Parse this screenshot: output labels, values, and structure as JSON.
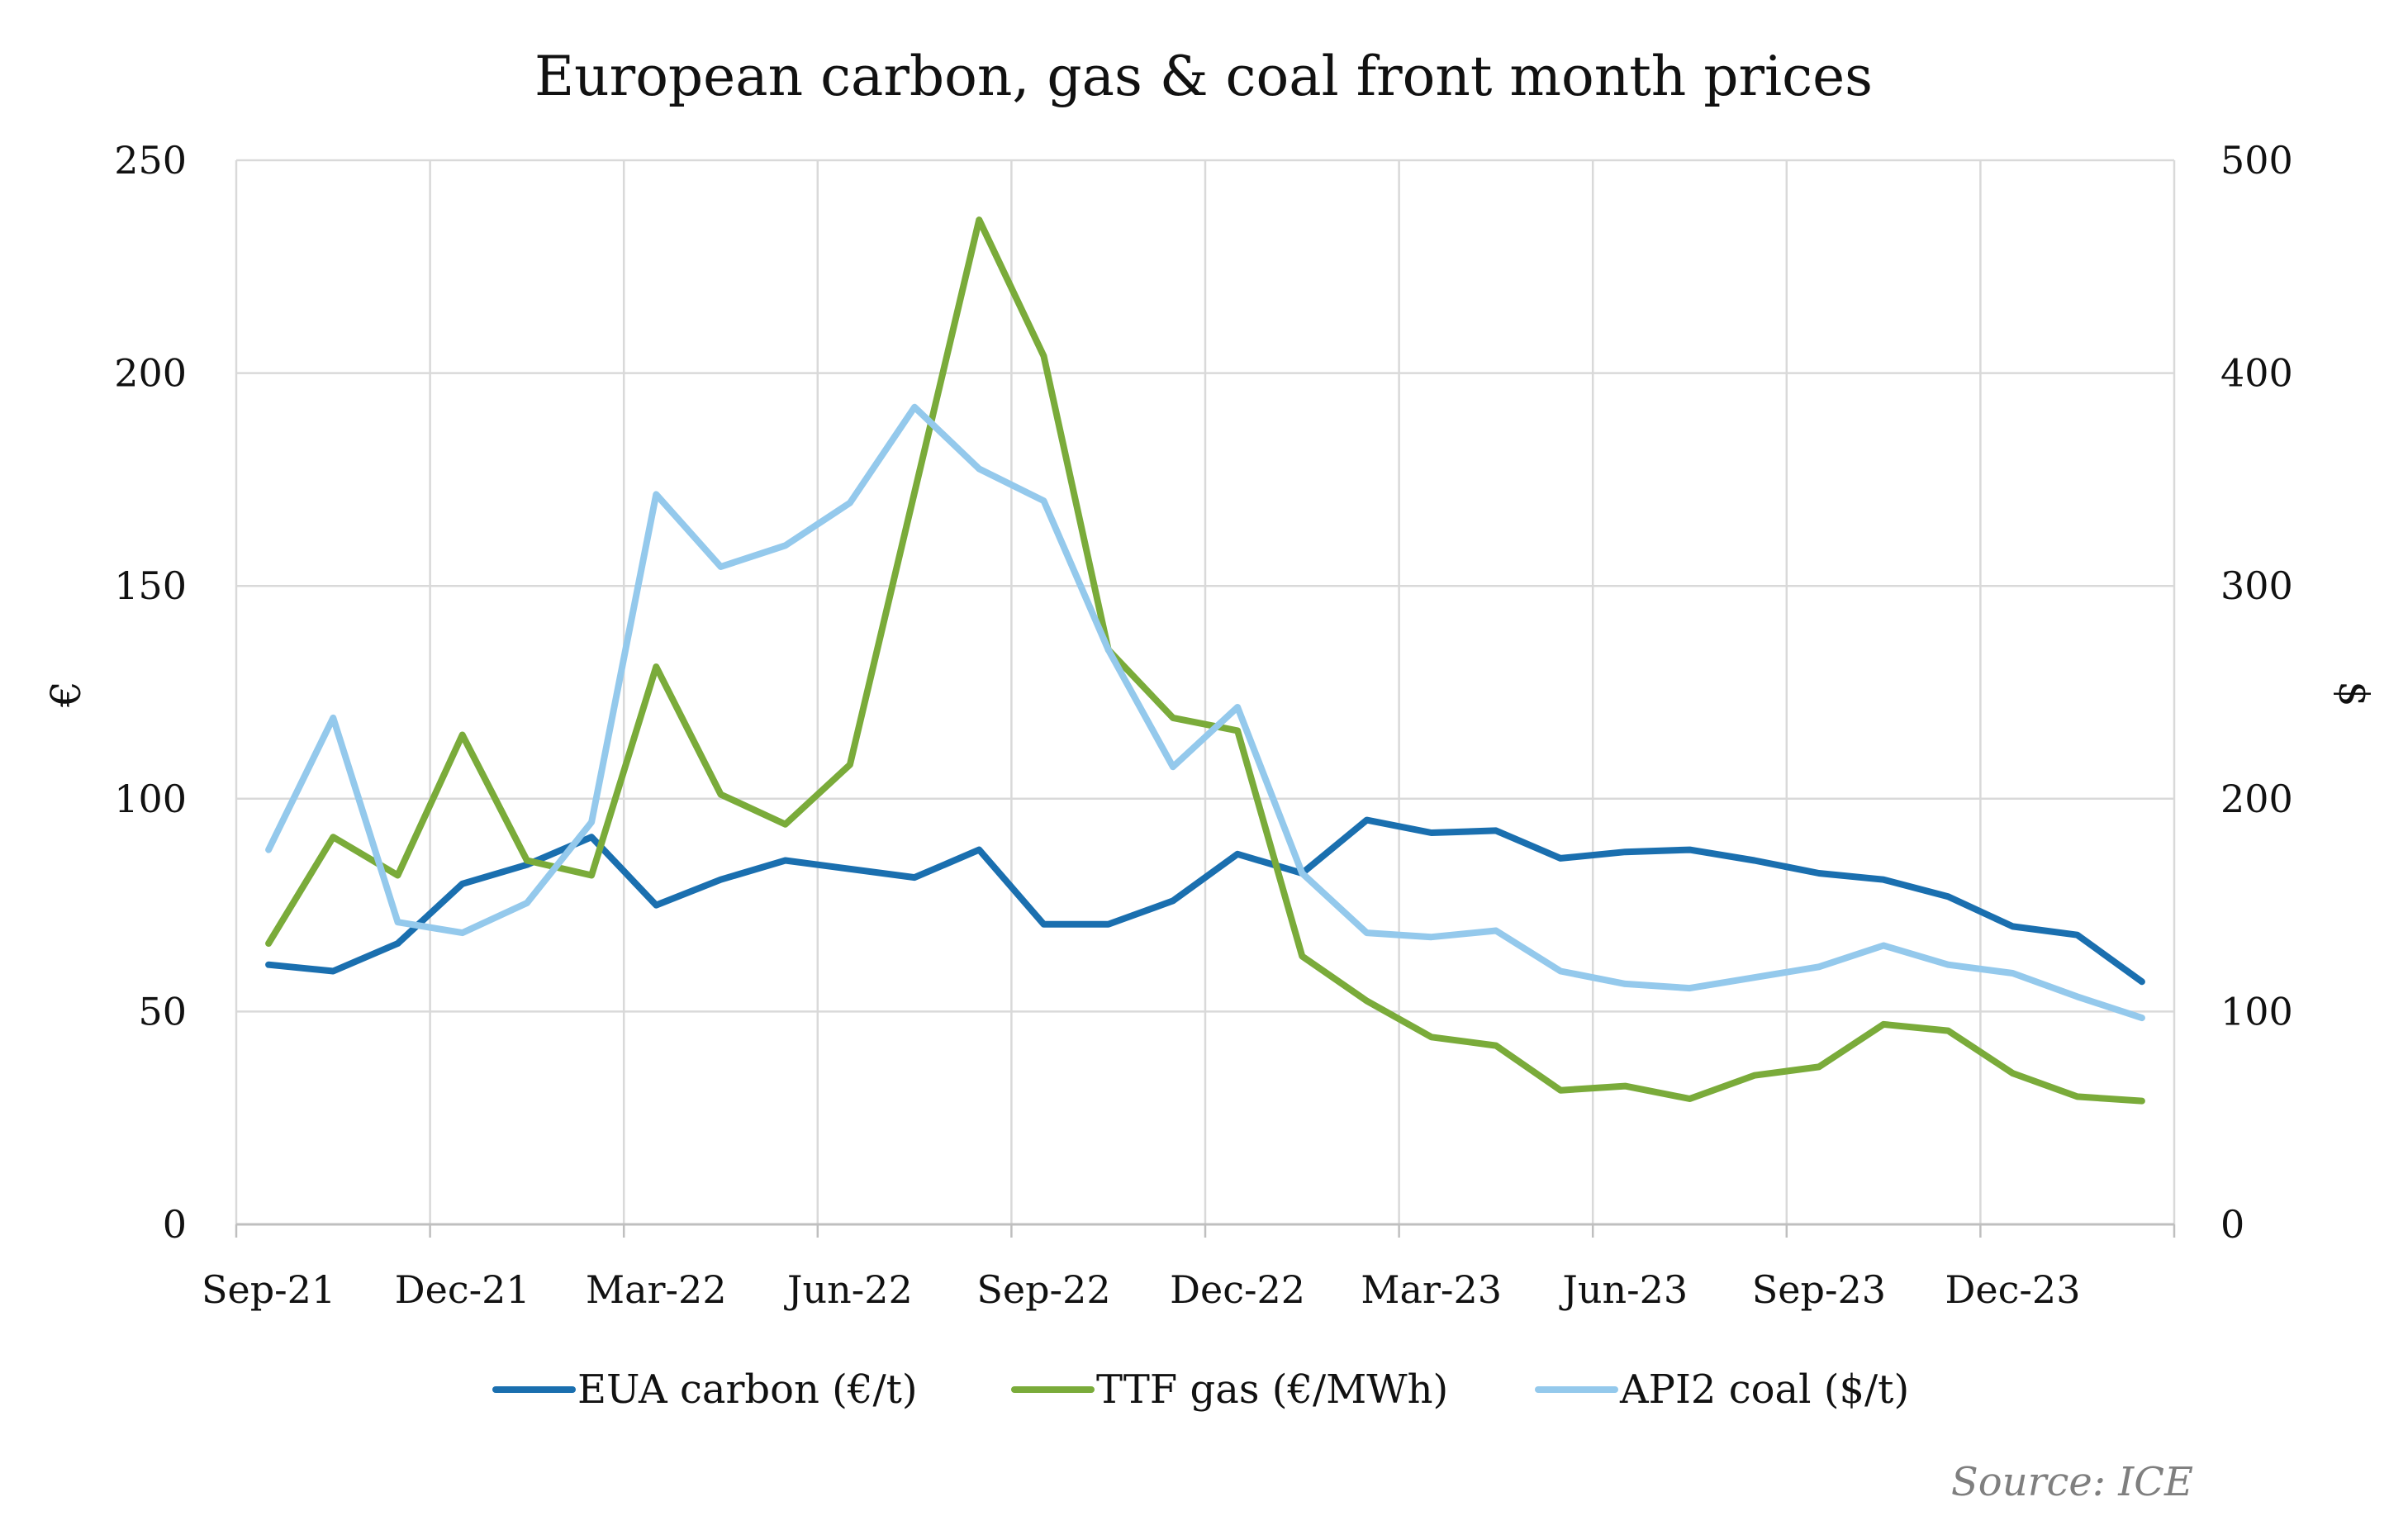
{
  "chart_data": {
    "type": "line",
    "title": "European carbon, gas & coal front month prices",
    "source": "Source: ICE",
    "x": [
      "Sep-21",
      "Oct-21",
      "Nov-21",
      "Dec-21",
      "Jan-22",
      "Feb-22",
      "Mar-22",
      "Apr-22",
      "May-22",
      "Jun-22",
      "Jul-22",
      "Aug-22",
      "Sep-22",
      "Oct-22",
      "Nov-22",
      "Dec-22",
      "Jan-23",
      "Feb-23",
      "Mar-23",
      "Apr-23",
      "May-23",
      "Jun-23",
      "Jul-23",
      "Aug-23",
      "Sep-23",
      "Oct-23",
      "Nov-23",
      "Dec-23",
      "Jan-24",
      "Feb-24"
    ],
    "x_tick_labels": [
      "Sep-21",
      "Dec-21",
      "Mar-22",
      "Jun-22",
      "Sep-22",
      "Dec-22",
      "Mar-23",
      "Jun-23",
      "Sep-23",
      "Dec-23"
    ],
    "ylabel_left": "€",
    "ylabel_right": "$",
    "ylim_left": [
      0,
      250
    ],
    "ylim_right": [
      0,
      500
    ],
    "yticks_left": [
      "0",
      "50",
      "100",
      "150",
      "200",
      "250"
    ],
    "yticks_right": [
      "0",
      "100",
      "200",
      "300",
      "400",
      "500"
    ],
    "grid": true,
    "legend_position": "bottom",
    "series": [
      {
        "name": "EUA carbon (€/t)",
        "axis": "left",
        "color": "#1a6faf",
        "values": [
          61,
          59.5,
          66,
          80,
          84.5,
          91,
          75,
          81,
          85.5,
          83.5,
          81.5,
          88,
          70.5,
          70.5,
          76,
          87,
          82.5,
          95,
          92,
          92.5,
          86,
          87.5,
          88,
          85.5,
          82.5,
          81,
          77,
          70,
          68,
          57
        ]
      },
      {
        "name": "TTF gas (€/MWh)",
        "axis": "left",
        "color": "#7aab3a",
        "values": [
          66,
          91,
          82,
          115,
          85.5,
          82,
          131,
          101,
          94,
          108,
          172,
          236,
          204,
          135,
          119,
          116,
          63,
          52.5,
          44,
          42,
          31.5,
          32.5,
          29.5,
          35,
          37,
          47,
          45.5,
          35.5,
          30,
          29
        ]
      },
      {
        "name": "API2 coal ($/t)",
        "axis": "right",
        "color": "#94c9ec",
        "values": [
          176,
          238,
          142,
          137,
          151,
          189,
          343,
          309,
          319,
          339,
          384,
          355,
          340,
          270,
          215,
          243,
          165,
          137,
          135,
          138,
          119,
          113,
          111,
          116,
          121,
          131,
          122,
          118,
          107,
          97
        ]
      }
    ]
  }
}
